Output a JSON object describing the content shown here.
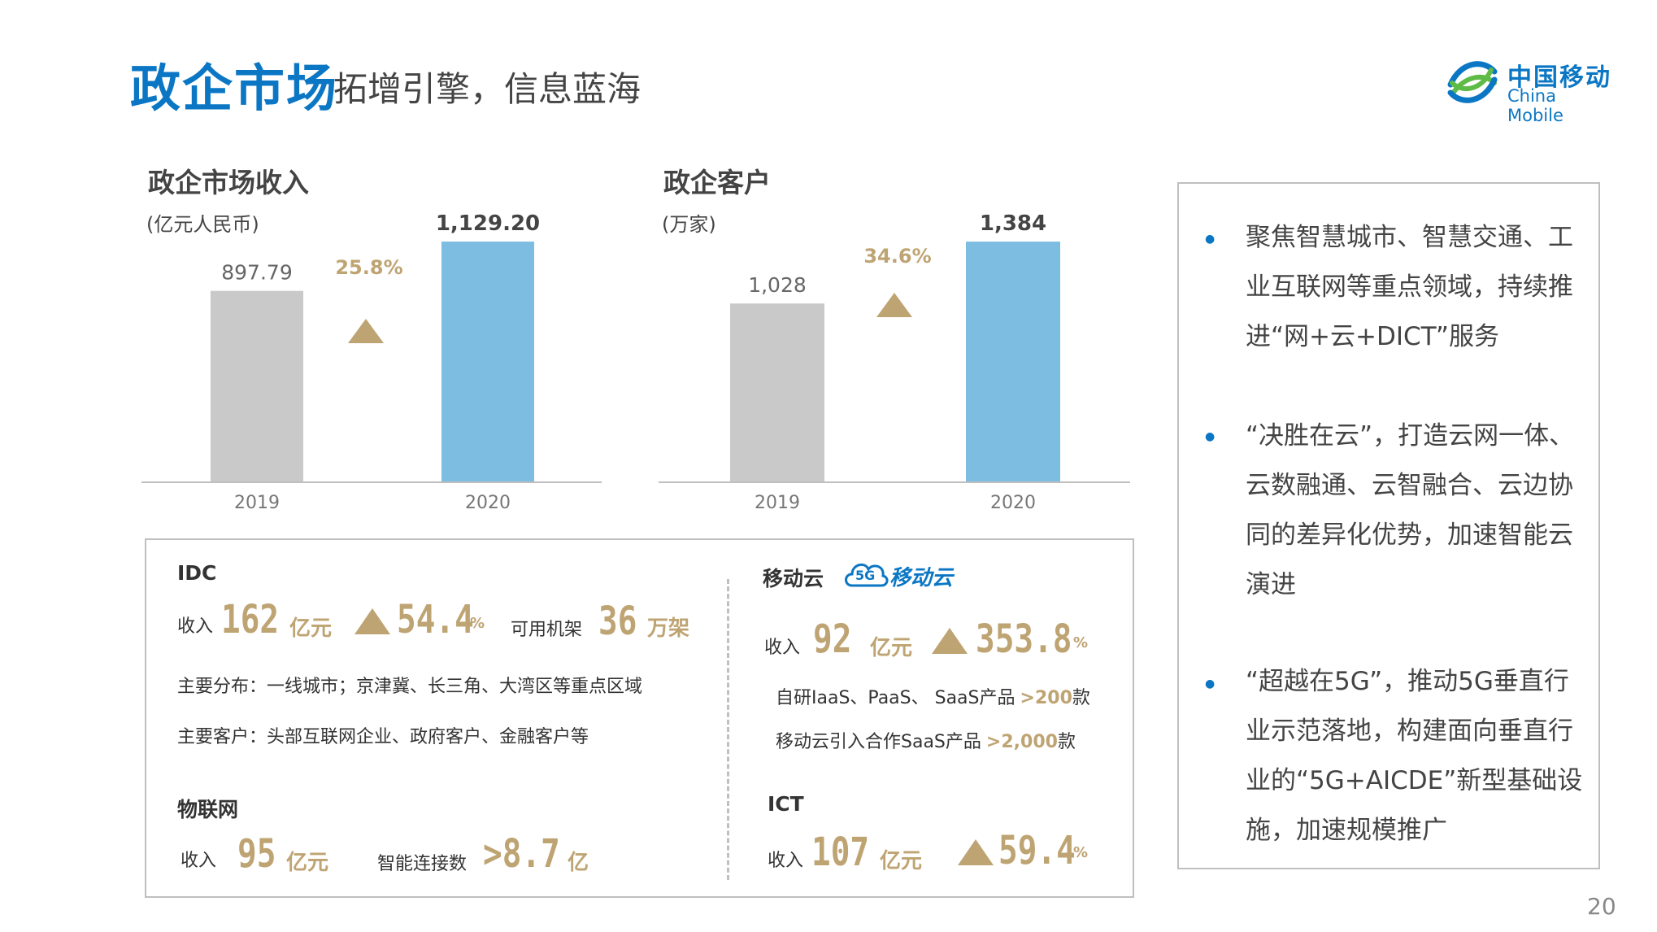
{
  "header": {
    "title_main": "政企市场",
    "title_sub": "拓增引擎，信息蓝海",
    "logo_cn": "中国移动",
    "logo_en": "China Mobile"
  },
  "colors": {
    "accent": "#0b77c4",
    "gold": "#bfa473",
    "bar_2019": "#c9c9c9",
    "bar_2020": "#7dbde2"
  },
  "chart_data": [
    {
      "type": "bar",
      "title": "政企市场收入",
      "unit": "(亿元人民币)",
      "categories": [
        "2019",
        "2020"
      ],
      "values": [
        897.79,
        1129.2
      ],
      "value_labels": [
        "897.79",
        "1,129.20"
      ],
      "growth_label": "25.8%",
      "ylim": [
        0,
        1240
      ]
    },
    {
      "type": "bar",
      "title": "政企客户",
      "unit": "(万家)",
      "categories": [
        "2019",
        "2020"
      ],
      "values": [
        1028,
        1384
      ],
      "value_labels": [
        "1,028",
        "1,384"
      ],
      "growth_label": "34.6%",
      "ylim": [
        0,
        1520
      ]
    }
  ],
  "right_panel": {
    "bullets": [
      "聚焦智慧城市、智慧交通、工业互联网等重点领域，持续推进“网+云+DICT”服务",
      "“决胜在云”，打造云网一体、云数融通、云智融合、云边协同的差异化优势，加速智能云演进",
      "“超越在5G”，推动5G垂直行业示范落地，构建面向垂直行业的“5G+AICDE”新型基础设施，加速规模推广"
    ]
  },
  "idc": {
    "title": "IDC",
    "revenue_label": "收入",
    "revenue": "162",
    "revenue_unit": "亿元",
    "growth": "54.4",
    "growth_unit": "%",
    "racks_label": "可用机架",
    "racks": "36",
    "racks_unit": "万架",
    "distribution": "主要分布：一线城市；京津冀、长三角、大湾区等重点区域",
    "customers": "主要客户：头部互联网企业、政府客户、金融客户等"
  },
  "iot": {
    "title": "物联网",
    "revenue_label": "收入",
    "revenue": "95",
    "revenue_unit": "亿元",
    "conn_label": "智能连接数",
    "conn": ">8.7",
    "conn_unit": "亿"
  },
  "cloud": {
    "title": "移动云",
    "logo_badge": "5G",
    "logo_text": "移动云",
    "revenue_label": "收入",
    "revenue": "92",
    "revenue_unit": "亿元",
    "growth": "353.8",
    "growth_unit": "%",
    "line1_text": "自研IaaS、PaaS、 SaaS产品",
    "line1_value": ">200",
    "line1_unit": "款",
    "line2_text": "移动云引入合作SaaS产品",
    "line2_value": ">2,000",
    "line2_unit": "款"
  },
  "ict": {
    "title": "ICT",
    "revenue_label": "收入",
    "revenue": "107",
    "revenue_unit": "亿元",
    "growth": "59.4",
    "growth_unit": "%"
  },
  "page_number": "20"
}
